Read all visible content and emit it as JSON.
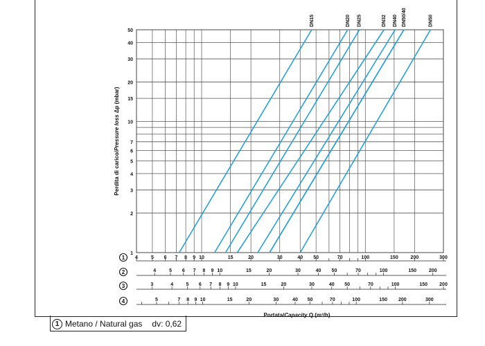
{
  "chart_data": {
    "type": "line",
    "xlabel_prefix": "Portata/",
    "xlabel_italic": "Capacity",
    "xlabel_suffix": " Q (m³/h)",
    "ylabel_prefix": "Perdita di carico/",
    "ylabel_italic": "Pressure loss",
    "ylabel_suffix": " Δp (mbar)",
    "y_scale": "log",
    "x_scale": "log",
    "ylim": [
      1,
      50
    ],
    "y_ticks": [
      1,
      2,
      3,
      4,
      5,
      6,
      7,
      8,
      9,
      10,
      15,
      20,
      30,
      40,
      50
    ],
    "y_tick_labels": [
      "1",
      "2",
      "3",
      "4",
      "5",
      "6",
      "7",
      "",
      "",
      "10",
      "15",
      "20",
      "30",
      "40",
      "50"
    ],
    "grid": true,
    "x_axis_reference": "1",
    "series": [
      {
        "name": "DN15",
        "x": [
          7.3,
          47
        ],
        "y": [
          1,
          50
        ]
      },
      {
        "name": "DN20",
        "x": [
          12,
          78
        ],
        "y": [
          1,
          50
        ]
      },
      {
        "name": "DN25",
        "x": [
          14,
          92
        ],
        "y": [
          1,
          50
        ]
      },
      {
        "name": "DN32",
        "x": [
          16.5,
          130
        ],
        "y": [
          1,
          50
        ]
      },
      {
        "name": "DN40",
        "x": [
          22,
          152
        ],
        "y": [
          1,
          50
        ]
      },
      {
        "name": "DN50",
        "x": [
          26,
          172
        ],
        "y": [
          1,
          50
        ]
      },
      {
        "name": "DN40",
        "x": [
          26,
          172
        ],
        "y": [
          1,
          50
        ]
      },
      {
        "name": "DN50",
        "x": [
          40,
          250
        ],
        "y": [
          1,
          50
        ]
      }
    ],
    "series_label_text": [
      "DN15",
      "DN20",
      "DN25",
      "DN32",
      "DN40",
      "DN50/40",
      "DN50"
    ],
    "scales": [
      {
        "id": "1",
        "xmin": 4,
        "xmax": 300,
        "labels": [
          {
            "v": 4,
            "t": "4"
          },
          {
            "v": 5,
            "t": "5"
          },
          {
            "v": 6,
            "t": "6"
          },
          {
            "v": 7,
            "t": "7"
          },
          {
            "v": 8,
            "t": "8"
          },
          {
            "v": 9,
            "t": "9"
          },
          {
            "v": 10,
            "t": "10"
          },
          {
            "v": 15,
            "t": "15"
          },
          {
            "v": 20,
            "t": "20"
          },
          {
            "v": 30,
            "t": "30"
          },
          {
            "v": 40,
            "t": "40"
          },
          {
            "v": 50,
            "t": "50"
          },
          {
            "v": 70,
            "t": "70"
          },
          {
            "v": 100,
            "t": "100"
          },
          {
            "v": 150,
            "t": "150"
          },
          {
            "v": 200,
            "t": "200"
          },
          {
            "v": 300,
            "t": "300"
          }
        ]
      },
      {
        "id": "2",
        "xmin": 3.1,
        "xmax": 232,
        "labels": [
          {
            "v": 4,
            "t": "4"
          },
          {
            "v": 5,
            "t": "5"
          },
          {
            "v": 6,
            "t": "6"
          },
          {
            "v": 7,
            "t": "7"
          },
          {
            "v": 8,
            "t": "8"
          },
          {
            "v": 9,
            "t": "9"
          },
          {
            "v": 10,
            "t": "10"
          },
          {
            "v": 15,
            "t": "15"
          },
          {
            "v": 20,
            "t": "20"
          },
          {
            "v": 30,
            "t": "30"
          },
          {
            "v": 40,
            "t": "40"
          },
          {
            "v": 50,
            "t": "50"
          },
          {
            "v": 70,
            "t": "70"
          },
          {
            "v": 100,
            "t": "100"
          },
          {
            "v": 150,
            "t": "150"
          },
          {
            "v": 200,
            "t": "200"
          }
        ]
      },
      {
        "id": "3",
        "xmin": 2.4,
        "xmax": 200,
        "labels": [
          {
            "v": 3,
            "t": "3"
          },
          {
            "v": 4,
            "t": "4"
          },
          {
            "v": 5,
            "t": "5"
          },
          {
            "v": 6,
            "t": "6"
          },
          {
            "v": 7,
            "t": "7"
          },
          {
            "v": 8,
            "t": "8"
          },
          {
            "v": 9,
            "t": "9"
          },
          {
            "v": 10,
            "t": "10"
          },
          {
            "v": 15,
            "t": "15"
          },
          {
            "v": 20,
            "t": "20"
          },
          {
            "v": 30,
            "t": "30"
          },
          {
            "v": 40,
            "t": "40"
          },
          {
            "v": 50,
            "t": "50"
          },
          {
            "v": 70,
            "t": "70"
          },
          {
            "v": 100,
            "t": "100"
          },
          {
            "v": 150,
            "t": "150"
          },
          {
            "v": 200,
            "t": "200"
          }
        ]
      },
      {
        "id": "4",
        "xmin": 3.7,
        "xmax": 370,
        "labels": [
          {
            "v": 5,
            "t": "5"
          },
          {
            "v": 7,
            "t": "7"
          },
          {
            "v": 8,
            "t": "8"
          },
          {
            "v": 9,
            "t": "9"
          },
          {
            "v": 10,
            "t": "10"
          },
          {
            "v": 15,
            "t": "15"
          },
          {
            "v": 20,
            "t": "20"
          },
          {
            "v": 30,
            "t": "30"
          },
          {
            "v": 40,
            "t": "40"
          },
          {
            "v": 50,
            "t": "50"
          },
          {
            "v": 70,
            "t": "70"
          },
          {
            "v": 100,
            "t": "100"
          },
          {
            "v": 150,
            "t": "150"
          },
          {
            "v": 200,
            "t": "200"
          },
          {
            "v": 300,
            "t": "300"
          }
        ]
      }
    ]
  },
  "legend": {
    "marker": "1",
    "text": "Metano / Natural gas",
    "dv": "dv: 0,62"
  },
  "colors": {
    "line": "#2a9fd0",
    "grid": "#555555",
    "text": "#111111"
  }
}
